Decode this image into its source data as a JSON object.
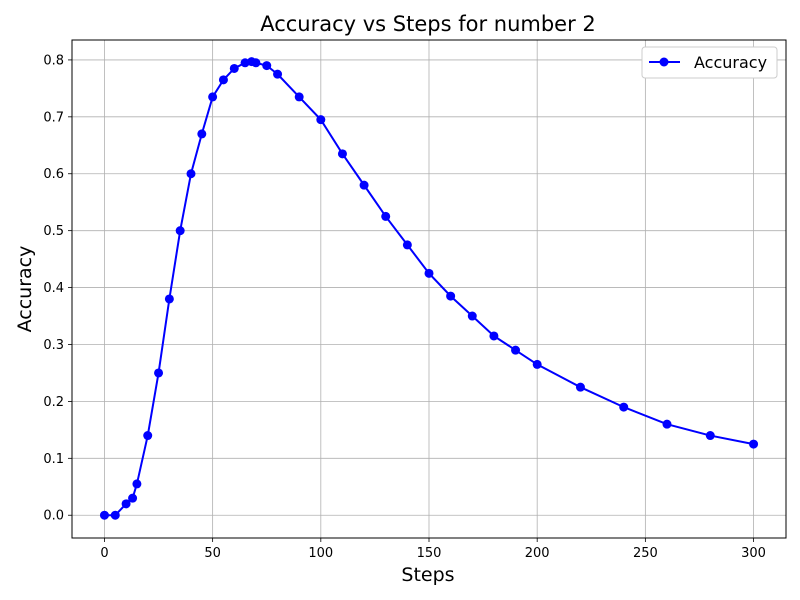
{
  "chart_data": {
    "type": "line",
    "title": "Accuracy vs Steps for number 2",
    "xlabel": "Steps",
    "ylabel": "Accuracy",
    "xlim": [
      -15,
      315
    ],
    "ylim": [
      -0.04,
      0.835
    ],
    "xticks": [
      0,
      50,
      100,
      150,
      200,
      250,
      300
    ],
    "yticks": [
      0.0,
      0.1,
      0.2,
      0.3,
      0.4,
      0.5,
      0.6,
      0.7,
      0.8
    ],
    "xtick_labels": [
      "0",
      "50",
      "100",
      "150",
      "200",
      "250",
      "300"
    ],
    "ytick_labels": [
      "0.0",
      "0.1",
      "0.2",
      "0.3",
      "0.4",
      "0.5",
      "0.6",
      "0.7",
      "0.8"
    ],
    "grid": true,
    "legend": {
      "position": "top-right",
      "entries": [
        "Accuracy"
      ]
    },
    "series": [
      {
        "name": "Accuracy",
        "color": "#0000ff",
        "marker": "circle",
        "x": [
          0,
          5,
          10,
          13,
          15,
          20,
          25,
          30,
          35,
          40,
          45,
          50,
          55,
          60,
          65,
          68,
          70,
          75,
          80,
          90,
          100,
          110,
          120,
          130,
          140,
          150,
          160,
          170,
          180,
          190,
          200,
          220,
          240,
          260,
          280,
          300
        ],
        "values": [
          0.0,
          0.0,
          0.02,
          0.03,
          0.055,
          0.14,
          0.25,
          0.38,
          0.5,
          0.6,
          0.67,
          0.735,
          0.765,
          0.785,
          0.795,
          0.797,
          0.795,
          0.79,
          0.775,
          0.735,
          0.695,
          0.635,
          0.58,
          0.525,
          0.475,
          0.425,
          0.385,
          0.35,
          0.315,
          0.29,
          0.265,
          0.225,
          0.19,
          0.16,
          0.14,
          0.125
        ]
      }
    ]
  }
}
